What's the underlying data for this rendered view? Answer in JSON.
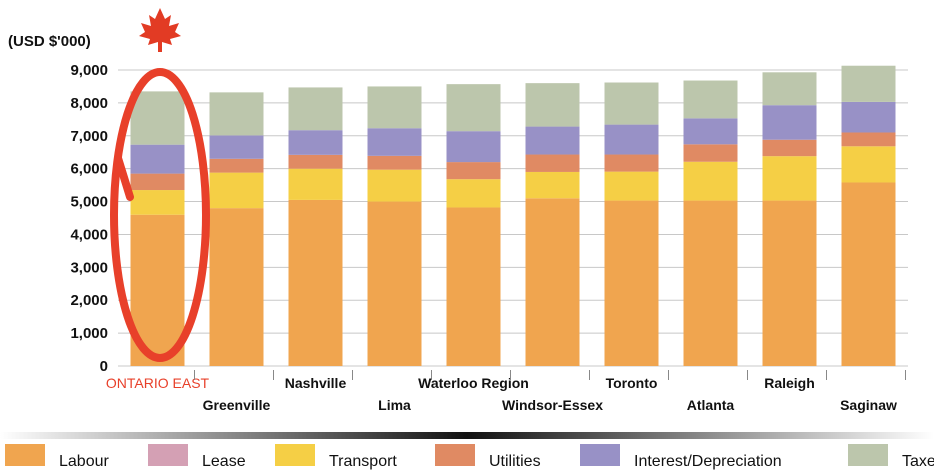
{
  "chart_data": {
    "type": "bar",
    "stacked": true,
    "ylabel": "(USD $'000)",
    "ylim": [
      0,
      9000
    ],
    "yticks": [
      0,
      1000,
      2000,
      3000,
      4000,
      5000,
      6000,
      7000,
      8000,
      9000
    ],
    "ytick_labels": [
      "0",
      "1,000",
      "2,000",
      "3,000",
      "4,000",
      "5,000",
      "6,000",
      "7,000",
      "8,000",
      "9,000"
    ],
    "grid": true,
    "legend_position": "bottom",
    "highlight_category": "ONTARIO EAST",
    "categories": [
      "ONTARIO EAST",
      "Greenville",
      "Nashville",
      "Lima",
      "Waterloo Region",
      "Windsor-Essex",
      "Toronto",
      "Atlanta",
      "Raleigh",
      "Saginaw"
    ],
    "series": [
      {
        "name": "Labour",
        "color": "#f0a54f",
        "values": [
          4600,
          4800,
          5050,
          5000,
          4820,
          5100,
          5030,
          5030,
          5030,
          5580
        ]
      },
      {
        "name": "Lease",
        "color": "#d4a0b4",
        "values": [
          0,
          0,
          0,
          0,
          0,
          0,
          0,
          0,
          0,
          0
        ]
      },
      {
        "name": "Transport",
        "color": "#f5cf45",
        "values": [
          750,
          1080,
          950,
          970,
          860,
          800,
          880,
          1180,
          1350,
          1100
        ]
      },
      {
        "name": "Utilities",
        "color": "#e08a63",
        "values": [
          500,
          420,
          420,
          420,
          520,
          530,
          520,
          530,
          500,
          420
        ]
      },
      {
        "name": "Interest/Depreciation",
        "color": "#9891c6",
        "values": [
          880,
          710,
          750,
          840,
          940,
          850,
          910,
          790,
          1050,
          930
        ]
      },
      {
        "name": "Taxes",
        "color": "#bcc6ac",
        "values": [
          1620,
          1310,
          1300,
          1270,
          1430,
          1320,
          1280,
          1150,
          1000,
          1100
        ]
      }
    ]
  }
}
